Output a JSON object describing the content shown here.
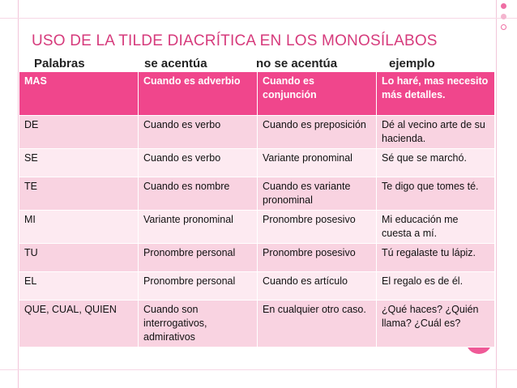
{
  "slide": {
    "title": "Uso de la tilde diacrítica en los monosílabos"
  },
  "columns": [
    "Palabras",
    "se acentúa",
    "no se acentúa",
    "ejemplo"
  ],
  "rows": [
    [
      "MAS",
      "Cuando es adverbio",
      "Cuando es conjunción",
      "Lo haré, mas necesito más detalles."
    ],
    [
      "DE",
      "Cuando es verbo",
      "Cuando es preposición",
      "Dé al vecino arte de su hacienda."
    ],
    [
      "SE",
      "Cuando es verbo",
      "Variante pronominal",
      "Sé que se marchó."
    ],
    [
      "TE",
      "Cuando es nombre",
      "Cuando es variante pronominal",
      "Te digo que tomes té."
    ],
    [
      "MI",
      "Variante pronominal",
      "Pronombre posesivo",
      "Mi educación me cuesta a mí."
    ],
    [
      "TU",
      "Pronombre personal",
      "Pronombre posesivo",
      "Tú regalaste tu lápiz."
    ],
    [
      "EL",
      "Pronombre personal",
      "Cuando es artículo",
      "El regalo es de él."
    ],
    [
      "QUE, CUAL, QUIEN",
      "Cuando son interrogativos, admirativos",
      "En cualquier otro caso.",
      "¿Qué haces? ¿Quién llama? ¿Cuál es?"
    ]
  ],
  "colors": {
    "accent": "#f0468c",
    "row_dark": "#f9d3e1",
    "row_light": "#fdeaf1",
    "title": "#d63b7c"
  }
}
